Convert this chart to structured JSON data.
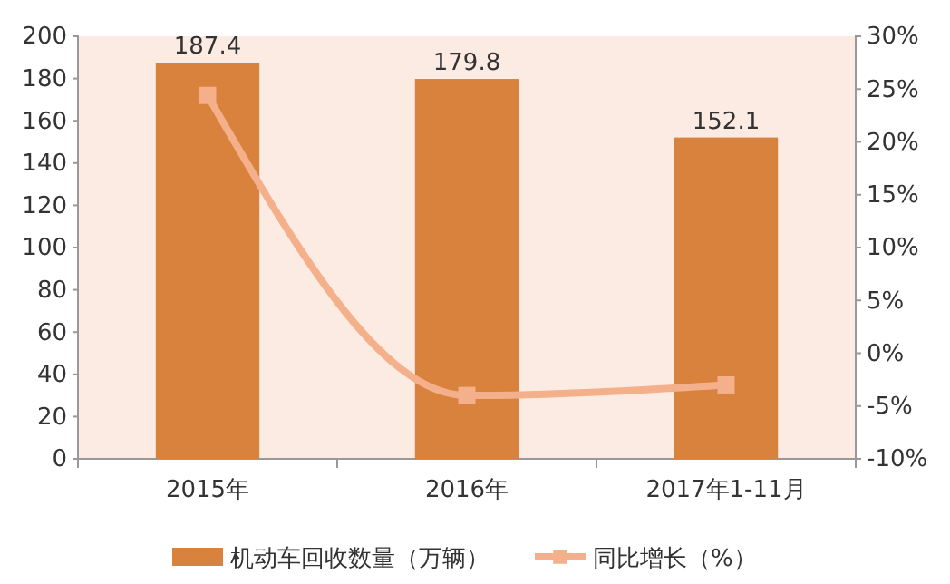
{
  "chart_data": {
    "type": "bar",
    "categories": [
      "2015年",
      "2016年",
      "2017年1-11月"
    ],
    "series": [
      {
        "name": "机动车回收数量（万辆）",
        "color": "#d8823e",
        "values": [
          187.4,
          179.8,
          152.1
        ],
        "value_labels": [
          "187.4",
          "179.8",
          "152.1"
        ]
      },
      {
        "name": "同比增长（%）",
        "type": "line",
        "axis": "y2",
        "color": "#f4b08a",
        "values": [
          24.4,
          -4.0,
          -3.0
        ]
      }
    ],
    "marker": "square",
    "legend": "bottom",
    "grid": false,
    "ylim": [
      0,
      200
    ],
    "yticks": [
      0,
      20,
      40,
      60,
      80,
      100,
      120,
      140,
      160,
      180,
      200
    ],
    "y2lim": [
      -10,
      30
    ],
    "y2ticks": [
      {
        "value": -10,
        "label": "-10%"
      },
      {
        "value": -5,
        "label": "-5%"
      },
      {
        "value": 0,
        "label": "0%"
      },
      {
        "value": 5,
        "label": "5%"
      },
      {
        "value": 10,
        "label": "10%"
      },
      {
        "value": 15,
        "label": "15%"
      },
      {
        "value": 20,
        "label": "20%"
      },
      {
        "value": 25,
        "label": "25%"
      },
      {
        "value": 30,
        "label": "30%"
      }
    ]
  }
}
